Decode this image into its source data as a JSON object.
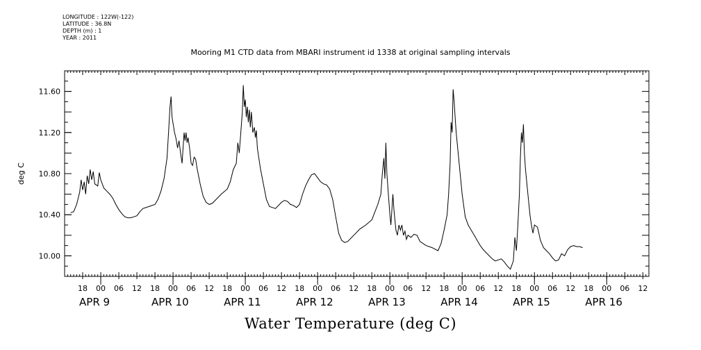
{
  "meta": {
    "longitude": "LONGITUDE : 122W(-122)",
    "latitude": "LATITUDE : 36.8N",
    "depth": "DEPTH (m) : 1",
    "year": "YEAR : 2011"
  },
  "chart_data": {
    "type": "line",
    "title": "Mooring M1 CTD data from MBARI instrument id 1338 at original sampling intervals",
    "xlabel": "Water Temperature (deg C)",
    "ylabel": "deg C",
    "ylim": [
      9.8,
      11.8
    ],
    "y_ticks": [
      10.0,
      10.4,
      10.8,
      11.2,
      11.6
    ],
    "y_tick_labels": [
      "10.00",
      "10.40",
      "10.80",
      "11.20",
      "11.60"
    ],
    "xlim": [
      "2011-04-08T12:00",
      "2011-04-16T14:00"
    ],
    "hour_ticks": [
      {
        "t": "2011-04-08T18:00",
        "label": "18"
      },
      {
        "t": "2011-04-09T00:00",
        "label": "00"
      },
      {
        "t": "2011-04-09T06:00",
        "label": "06"
      },
      {
        "t": "2011-04-09T12:00",
        "label": "12"
      },
      {
        "t": "2011-04-09T18:00",
        "label": "18"
      },
      {
        "t": "2011-04-10T00:00",
        "label": "00"
      },
      {
        "t": "2011-04-10T06:00",
        "label": "06"
      },
      {
        "t": "2011-04-10T12:00",
        "label": "12"
      },
      {
        "t": "2011-04-10T18:00",
        "label": "18"
      },
      {
        "t": "2011-04-11T00:00",
        "label": "00"
      },
      {
        "t": "2011-04-11T06:00",
        "label": "06"
      },
      {
        "t": "2011-04-11T12:00",
        "label": "12"
      },
      {
        "t": "2011-04-11T18:00",
        "label": "18"
      },
      {
        "t": "2011-04-12T00:00",
        "label": "00"
      },
      {
        "t": "2011-04-12T06:00",
        "label": "06"
      },
      {
        "t": "2011-04-12T12:00",
        "label": "12"
      },
      {
        "t": "2011-04-12T18:00",
        "label": "18"
      },
      {
        "t": "2011-04-13T00:00",
        "label": "00"
      },
      {
        "t": "2011-04-13T06:00",
        "label": "06"
      },
      {
        "t": "2011-04-13T12:00",
        "label": "12"
      },
      {
        "t": "2011-04-13T18:00",
        "label": "18"
      },
      {
        "t": "2011-04-14T00:00",
        "label": "00"
      },
      {
        "t": "2011-04-14T06:00",
        "label": "06"
      },
      {
        "t": "2011-04-14T12:00",
        "label": "12"
      },
      {
        "t": "2011-04-14T18:00",
        "label": "18"
      },
      {
        "t": "2011-04-15T00:00",
        "label": "00"
      },
      {
        "t": "2011-04-15T06:00",
        "label": "06"
      },
      {
        "t": "2011-04-15T12:00",
        "label": "12"
      },
      {
        "t": "2011-04-15T18:00",
        "label": "18"
      },
      {
        "t": "2011-04-16T00:00",
        "label": "00"
      },
      {
        "t": "2011-04-16T06:00",
        "label": "06"
      },
      {
        "t": "2011-04-16T12:00",
        "label": "12"
      }
    ],
    "day_labels": [
      {
        "t": "2011-04-09T00:00",
        "label": "APR  9"
      },
      {
        "t": "2011-04-10T00:00",
        "label": "APR 10"
      },
      {
        "t": "2011-04-11T00:00",
        "label": "APR 11"
      },
      {
        "t": "2011-04-12T00:00",
        "label": "APR 12"
      },
      {
        "t": "2011-04-13T00:00",
        "label": "APR 13"
      },
      {
        "t": "2011-04-14T00:00",
        "label": "APR 14"
      },
      {
        "t": "2011-04-15T00:00",
        "label": "APR 15"
      },
      {
        "t": "2011-04-16T00:00",
        "label": "APR 16"
      }
    ],
    "grid": false,
    "series": [
      {
        "color": "#000000",
        "points": [
          [
            "2011-04-08T14:00",
            10.42
          ],
          [
            "2011-04-08T15:00",
            10.43
          ],
          [
            "2011-04-08T16:00",
            10.5
          ],
          [
            "2011-04-08T17:00",
            10.62
          ],
          [
            "2011-04-08T17:30",
            10.74
          ],
          [
            "2011-04-08T18:00",
            10.64
          ],
          [
            "2011-04-08T18:30",
            10.72
          ],
          [
            "2011-04-08T19:00",
            10.6
          ],
          [
            "2011-04-08T19:30",
            10.78
          ],
          [
            "2011-04-08T20:00",
            10.7
          ],
          [
            "2011-04-08T20:30",
            10.84
          ],
          [
            "2011-04-08T21:00",
            10.74
          ],
          [
            "2011-04-08T21:30",
            10.82
          ],
          [
            "2011-04-08T22:00",
            10.7
          ],
          [
            "2011-04-08T23:00",
            10.68
          ],
          [
            "2011-04-08T23:30",
            10.81
          ],
          [
            "2011-04-09T00:00",
            10.74
          ],
          [
            "2011-04-09T01:00",
            10.66
          ],
          [
            "2011-04-09T02:00",
            10.63
          ],
          [
            "2011-04-09T03:00",
            10.6
          ],
          [
            "2011-04-09T04:00",
            10.56
          ],
          [
            "2011-04-09T05:00",
            10.5
          ],
          [
            "2011-04-09T06:00",
            10.45
          ],
          [
            "2011-04-09T07:00",
            10.41
          ],
          [
            "2011-04-09T08:00",
            10.38
          ],
          [
            "2011-04-09T09:00",
            10.37
          ],
          [
            "2011-04-09T10:00",
            10.37
          ],
          [
            "2011-04-09T11:00",
            10.38
          ],
          [
            "2011-04-09T12:00",
            10.39
          ],
          [
            "2011-04-09T13:00",
            10.43
          ],
          [
            "2011-04-09T14:00",
            10.46
          ],
          [
            "2011-04-09T16:00",
            10.48
          ],
          [
            "2011-04-09T18:00",
            10.5
          ],
          [
            "2011-04-09T19:00",
            10.55
          ],
          [
            "2011-04-09T20:00",
            10.63
          ],
          [
            "2011-04-09T21:00",
            10.75
          ],
          [
            "2011-04-09T22:00",
            10.95
          ],
          [
            "2011-04-09T22:30",
            11.2
          ],
          [
            "2011-04-09T23:00",
            11.45
          ],
          [
            "2011-04-09T23:20",
            11.55
          ],
          [
            "2011-04-09T23:40",
            11.35
          ],
          [
            "2011-04-10T00:30",
            11.2
          ],
          [
            "2011-04-10T01:00",
            11.14
          ],
          [
            "2011-04-10T01:30",
            11.05
          ],
          [
            "2011-04-10T02:00",
            11.12
          ],
          [
            "2011-04-10T02:30",
            11.0
          ],
          [
            "2011-04-10T03:00",
            10.9
          ],
          [
            "2011-04-10T03:20",
            11.05
          ],
          [
            "2011-04-10T03:40",
            11.2
          ],
          [
            "2011-04-10T04:00",
            11.12
          ],
          [
            "2011-04-10T04:20",
            11.2
          ],
          [
            "2011-04-10T04:40",
            11.1
          ],
          [
            "2011-04-10T05:00",
            11.15
          ],
          [
            "2011-04-10T05:30",
            11.05
          ],
          [
            "2011-04-10T06:00",
            10.9
          ],
          [
            "2011-04-10T06:30",
            10.88
          ],
          [
            "2011-04-10T07:00",
            10.96
          ],
          [
            "2011-04-10T07:30",
            10.94
          ],
          [
            "2011-04-10T08:00",
            10.85
          ],
          [
            "2011-04-10T09:00",
            10.7
          ],
          [
            "2011-04-10T10:00",
            10.58
          ],
          [
            "2011-04-10T11:00",
            10.52
          ],
          [
            "2011-04-10T12:00",
            10.5
          ],
          [
            "2011-04-10T13:00",
            10.51
          ],
          [
            "2011-04-10T14:00",
            10.54
          ],
          [
            "2011-04-10T16:00",
            10.6
          ],
          [
            "2011-04-10T18:00",
            10.65
          ],
          [
            "2011-04-10T19:00",
            10.72
          ],
          [
            "2011-04-10T20:00",
            10.84
          ],
          [
            "2011-04-10T21:00",
            10.9
          ],
          [
            "2011-04-10T21:30",
            11.1
          ],
          [
            "2011-04-10T22:00",
            11.0
          ],
          [
            "2011-04-10T22:30",
            11.2
          ],
          [
            "2011-04-10T23:00",
            11.4
          ],
          [
            "2011-04-10T23:20",
            11.66
          ],
          [
            "2011-04-10T23:40",
            11.45
          ],
          [
            "2011-04-11T00:00",
            11.52
          ],
          [
            "2011-04-11T00:20",
            11.35
          ],
          [
            "2011-04-11T00:40",
            11.45
          ],
          [
            "2011-04-11T01:00",
            11.3
          ],
          [
            "2011-04-11T01:20",
            11.42
          ],
          [
            "2011-04-11T01:40",
            11.25
          ],
          [
            "2011-04-11T02:00",
            11.4
          ],
          [
            "2011-04-11T02:30",
            11.2
          ],
          [
            "2011-04-11T03:00",
            11.25
          ],
          [
            "2011-04-11T03:20",
            11.15
          ],
          [
            "2011-04-11T03:40",
            11.22
          ],
          [
            "2011-04-11T04:00",
            11.05
          ],
          [
            "2011-04-11T05:00",
            10.85
          ],
          [
            "2011-04-11T06:00",
            10.7
          ],
          [
            "2011-04-11T07:00",
            10.55
          ],
          [
            "2011-04-11T08:00",
            10.48
          ],
          [
            "2011-04-11T09:00",
            10.47
          ],
          [
            "2011-04-11T10:00",
            10.46
          ],
          [
            "2011-04-11T11:00",
            10.49
          ],
          [
            "2011-04-11T12:00",
            10.52
          ],
          [
            "2011-04-11T13:00",
            10.54
          ],
          [
            "2011-04-11T14:00",
            10.53
          ],
          [
            "2011-04-11T15:00",
            10.5
          ],
          [
            "2011-04-11T16:00",
            10.49
          ],
          [
            "2011-04-11T17:00",
            10.47
          ],
          [
            "2011-04-11T18:00",
            10.5
          ],
          [
            "2011-04-11T19:00",
            10.6
          ],
          [
            "2011-04-11T20:00",
            10.68
          ],
          [
            "2011-04-11T21:00",
            10.74
          ],
          [
            "2011-04-11T22:00",
            10.79
          ],
          [
            "2011-04-11T23:00",
            10.8
          ],
          [
            "2011-04-12T00:00",
            10.76
          ],
          [
            "2011-04-12T01:00",
            10.72
          ],
          [
            "2011-04-12T02:00",
            10.7
          ],
          [
            "2011-04-12T03:00",
            10.69
          ],
          [
            "2011-04-12T04:00",
            10.65
          ],
          [
            "2011-04-12T05:00",
            10.55
          ],
          [
            "2011-04-12T06:00",
            10.38
          ],
          [
            "2011-04-12T07:00",
            10.22
          ],
          [
            "2011-04-12T08:00",
            10.15
          ],
          [
            "2011-04-12T09:00",
            10.13
          ],
          [
            "2011-04-12T10:00",
            10.14
          ],
          [
            "2011-04-12T12:00",
            10.2
          ],
          [
            "2011-04-12T14:00",
            10.26
          ],
          [
            "2011-04-12T16:00",
            10.3
          ],
          [
            "2011-04-12T18:00",
            10.35
          ],
          [
            "2011-04-12T20:00",
            10.5
          ],
          [
            "2011-04-12T21:00",
            10.6
          ],
          [
            "2011-04-12T21:30",
            10.8
          ],
          [
            "2011-04-12T22:00",
            10.95
          ],
          [
            "2011-04-12T22:20",
            10.75
          ],
          [
            "2011-04-12T22:40",
            11.1
          ],
          [
            "2011-04-12T23:00",
            10.8
          ],
          [
            "2011-04-12T23:30",
            10.6
          ],
          [
            "2011-04-13T00:00",
            10.4
          ],
          [
            "2011-04-13T00:20",
            10.3
          ],
          [
            "2011-04-13T00:40",
            10.45
          ],
          [
            "2011-04-13T01:00",
            10.6
          ],
          [
            "2011-04-13T01:20",
            10.45
          ],
          [
            "2011-04-13T01:40",
            10.35
          ],
          [
            "2011-04-13T02:00",
            10.25
          ],
          [
            "2011-04-13T02:30",
            10.2
          ],
          [
            "2011-04-13T03:00",
            10.3
          ],
          [
            "2011-04-13T03:30",
            10.25
          ],
          [
            "2011-04-13T04:00",
            10.3
          ],
          [
            "2011-04-13T04:30",
            10.2
          ],
          [
            "2011-04-13T05:00",
            10.24
          ],
          [
            "2011-04-13T05:30",
            10.16
          ],
          [
            "2011-04-13T06:00",
            10.2
          ],
          [
            "2011-04-13T07:00",
            10.18
          ],
          [
            "2011-04-13T08:00",
            10.21
          ],
          [
            "2011-04-13T09:00",
            10.2
          ],
          [
            "2011-04-13T10:00",
            10.14
          ],
          [
            "2011-04-13T12:00",
            10.1
          ],
          [
            "2011-04-13T14:00",
            10.08
          ],
          [
            "2011-04-13T16:00",
            10.05
          ],
          [
            "2011-04-13T17:00",
            10.12
          ],
          [
            "2011-04-13T18:00",
            10.25
          ],
          [
            "2011-04-13T19:00",
            10.4
          ],
          [
            "2011-04-13T19:30",
            10.6
          ],
          [
            "2011-04-13T20:00",
            10.9
          ],
          [
            "2011-04-13T20:20",
            11.3
          ],
          [
            "2011-04-13T20:40",
            11.2
          ],
          [
            "2011-04-13T21:00",
            11.62
          ],
          [
            "2011-04-13T21:20",
            11.5
          ],
          [
            "2011-04-13T21:40",
            11.35
          ],
          [
            "2011-04-13T22:00",
            11.2
          ],
          [
            "2011-04-13T23:00",
            10.9
          ],
          [
            "2011-04-14T00:00",
            10.6
          ],
          [
            "2011-04-14T01:00",
            10.38
          ],
          [
            "2011-04-14T02:00",
            10.3
          ],
          [
            "2011-04-14T03:00",
            10.25
          ],
          [
            "2011-04-14T04:00",
            10.2
          ],
          [
            "2011-04-14T05:00",
            10.15
          ],
          [
            "2011-04-14T06:00",
            10.1
          ],
          [
            "2011-04-14T07:00",
            10.06
          ],
          [
            "2011-04-14T08:00",
            10.03
          ],
          [
            "2011-04-14T09:00",
            10.0
          ],
          [
            "2011-04-14T10:00",
            9.97
          ],
          [
            "2011-04-14T11:00",
            9.95
          ],
          [
            "2011-04-14T12:00",
            9.96
          ],
          [
            "2011-04-14T13:00",
            9.97
          ],
          [
            "2011-04-14T14:00",
            9.94
          ],
          [
            "2011-04-14T15:00",
            9.9
          ],
          [
            "2011-04-14T16:00",
            9.87
          ],
          [
            "2011-04-14T17:00",
            9.95
          ],
          [
            "2011-04-14T17:30",
            10.18
          ],
          [
            "2011-04-14T18:00",
            10.05
          ],
          [
            "2011-04-14T18:30",
            10.3
          ],
          [
            "2011-04-14T19:00",
            10.6
          ],
          [
            "2011-04-14T19:20",
            10.95
          ],
          [
            "2011-04-14T19:40",
            11.2
          ],
          [
            "2011-04-14T20:00",
            11.1
          ],
          [
            "2011-04-14T20:20",
            11.28
          ],
          [
            "2011-04-14T20:40",
            11.0
          ],
          [
            "2011-04-14T21:00",
            10.85
          ],
          [
            "2011-04-14T21:30",
            10.7
          ],
          [
            "2011-04-14T22:00",
            10.55
          ],
          [
            "2011-04-14T22:30",
            10.4
          ],
          [
            "2011-04-14T23:00",
            10.3
          ],
          [
            "2011-04-14T23:30",
            10.22
          ],
          [
            "2011-04-15T00:00",
            10.3
          ],
          [
            "2011-04-15T01:00",
            10.28
          ],
          [
            "2011-04-15T02:00",
            10.15
          ],
          [
            "2011-04-15T03:00",
            10.08
          ],
          [
            "2011-04-15T04:00",
            10.05
          ],
          [
            "2011-04-15T05:00",
            10.02
          ],
          [
            "2011-04-15T06:00",
            9.98
          ],
          [
            "2011-04-15T07:00",
            9.95
          ],
          [
            "2011-04-15T08:00",
            9.96
          ],
          [
            "2011-04-15T09:00",
            10.02
          ],
          [
            "2011-04-15T10:00",
            10.0
          ],
          [
            "2011-04-15T11:00",
            10.06
          ],
          [
            "2011-04-15T12:00",
            10.09
          ],
          [
            "2011-04-15T13:00",
            10.1
          ],
          [
            "2011-04-15T14:00",
            10.09
          ],
          [
            "2011-04-15T15:00",
            10.09
          ],
          [
            "2011-04-15T16:00",
            10.08
          ]
        ]
      }
    ]
  }
}
